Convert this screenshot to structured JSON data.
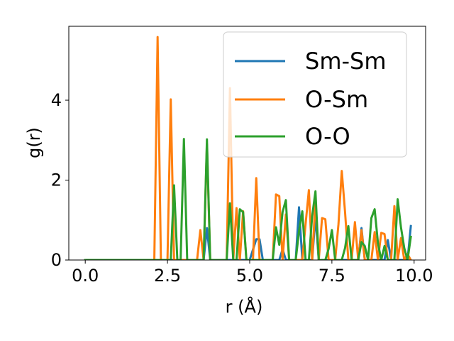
{
  "chart_data": {
    "type": "line",
    "title": "",
    "xlabel": "r (Å)",
    "ylabel": "g(r)",
    "xlim": [
      -0.5,
      10.35
    ],
    "ylim": [
      0,
      5.85
    ],
    "xticks": [
      0.0,
      2.5,
      5.0,
      7.5,
      10.0
    ],
    "xtick_labels": [
      "0.0",
      "2.5",
      "5.0",
      "7.5",
      "10.0"
    ],
    "yticks": [
      0,
      2,
      4
    ],
    "ytick_labels": [
      "0",
      "2",
      "4"
    ],
    "grid": false,
    "legend_position": "top-right",
    "series": [
      {
        "name": "Sm-Sm",
        "color": "#1f77b4",
        "x": [
          0.0,
          3.6,
          3.7,
          3.8,
          5.0,
          5.2,
          5.3,
          5.4,
          5.9,
          6.0,
          6.1,
          6.4,
          6.5,
          6.6,
          6.9,
          7.0,
          7.1,
          8.3,
          8.4,
          8.5,
          9.1,
          9.2,
          9.3,
          9.7,
          9.8,
          9.9
        ],
        "y": [
          0.0,
          0.0,
          0.8,
          0.0,
          0.0,
          0.52,
          0.52,
          0.0,
          0.0,
          0.27,
          0.0,
          0.0,
          1.32,
          0.0,
          0.0,
          1.1,
          0.0,
          0.0,
          0.8,
          0.0,
          0.0,
          0.5,
          0.0,
          0.0,
          0.0,
          0.85
        ]
      },
      {
        "name": "O-Sm",
        "color": "#ff7f0e",
        "x": [
          0.0,
          2.1,
          2.2,
          2.3,
          2.5,
          2.6,
          2.7,
          3.4,
          3.5,
          3.6,
          3.7,
          3.8,
          4.3,
          4.4,
          4.5,
          4.6,
          4.7,
          4.8,
          4.9,
          5.0,
          5.1,
          5.2,
          5.3,
          5.6,
          5.7,
          5.8,
          5.9,
          6.0,
          6.1,
          6.2,
          6.3,
          6.4,
          6.5,
          6.6,
          6.7,
          6.8,
          6.9,
          7.0,
          7.1,
          7.2,
          7.3,
          7.4,
          7.5,
          7.6,
          7.7,
          7.8,
          7.9,
          8.0,
          8.1,
          8.2,
          8.3,
          8.4,
          8.5,
          8.6,
          8.7,
          8.8,
          8.9,
          9.0,
          9.1,
          9.2,
          9.3,
          9.4,
          9.5,
          9.6,
          9.7,
          9.8,
          9.9
        ],
        "y": [
          0.0,
          0.0,
          5.58,
          0.0,
          0.0,
          4.02,
          0.0,
          0.0,
          0.75,
          0.0,
          2.9,
          0.0,
          0.0,
          4.3,
          0.0,
          1.3,
          0.0,
          1.22,
          0.0,
          0.0,
          0.0,
          2.05,
          0.0,
          0.0,
          0.0,
          1.64,
          1.6,
          0.0,
          1.14,
          0.0,
          0.0,
          0.0,
          0.0,
          0.0,
          0.9,
          1.75,
          0.0,
          1.5,
          0.0,
          1.05,
          1.02,
          0.0,
          0.0,
          0.0,
          0.9,
          2.23,
          1.2,
          0.0,
          0.0,
          0.95,
          0.0,
          0.75,
          0.0,
          0.0,
          0.0,
          0.7,
          0.0,
          0.68,
          0.65,
          0.0,
          0.0,
          1.35,
          0.0,
          0.55,
          0.0,
          0.15,
          0.0
        ]
      },
      {
        "name": "O-O",
        "color": "#2ca02c",
        "x": [
          0.0,
          2.6,
          2.7,
          2.8,
          2.9,
          3.0,
          3.1,
          3.5,
          3.6,
          3.7,
          3.8,
          4.2,
          4.3,
          4.4,
          4.5,
          4.6,
          4.7,
          4.8,
          4.9,
          5.7,
          5.8,
          5.9,
          6.0,
          6.1,
          6.2,
          6.3,
          6.4,
          6.5,
          6.6,
          6.7,
          6.8,
          6.9,
          7.0,
          7.1,
          7.2,
          7.3,
          7.4,
          7.5,
          7.6,
          7.8,
          7.9,
          8.0,
          8.1,
          8.2,
          8.3,
          8.4,
          8.5,
          8.6,
          8.7,
          8.8,
          8.9,
          9.0,
          9.1,
          9.2,
          9.3,
          9.4,
          9.5,
          9.6,
          9.7,
          9.8,
          9.9
        ],
        "y": [
          0.0,
          0.0,
          1.87,
          0.0,
          0.0,
          3.03,
          0.0,
          0.0,
          0.0,
          3.02,
          0.0,
          0.0,
          0.0,
          1.42,
          0.0,
          0.0,
          1.27,
          1.2,
          0.0,
          0.0,
          0.82,
          0.38,
          1.2,
          1.5,
          0.0,
          0.0,
          0.0,
          0.72,
          1.22,
          0.0,
          0.0,
          1.1,
          1.72,
          0.0,
          0.0,
          0.0,
          0.28,
          0.75,
          0.0,
          0.0,
          0.3,
          0.85,
          0.0,
          0.0,
          0.0,
          0.45,
          0.35,
          0.0,
          1.05,
          1.27,
          0.43,
          0.0,
          0.35,
          0.0,
          0.0,
          0.0,
          1.52,
          0.82,
          0.3,
          0.0,
          0.58
        ]
      }
    ]
  }
}
